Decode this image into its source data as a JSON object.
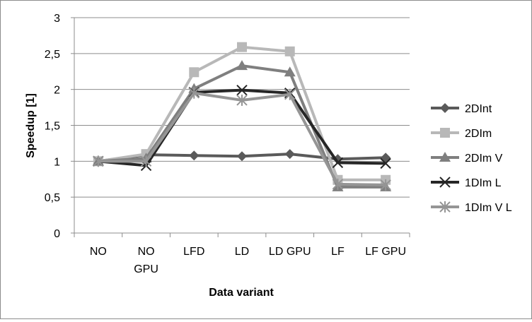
{
  "chart_data": {
    "type": "line",
    "title": "",
    "xlabel": "Data variant",
    "ylabel": "Speedup [1]",
    "ylim": [
      0,
      3
    ],
    "yticks": [
      0,
      0.5,
      1,
      1.5,
      2,
      2.5,
      3
    ],
    "ytick_labels": [
      "0",
      "0,5",
      "1",
      "1,5",
      "2",
      "2,5",
      "3"
    ],
    "categories": [
      "NO",
      "NO GPU",
      "LFD",
      "LD",
      "LD GPU",
      "LF",
      "LF GPU"
    ],
    "category_labels": [
      [
        "NO"
      ],
      [
        "NO",
        "GPU"
      ],
      [
        "LFD"
      ],
      [
        "LD"
      ],
      [
        "LD GPU"
      ],
      [
        "LF"
      ],
      [
        "LF GPU"
      ]
    ],
    "grid": "horizontal",
    "legend_position": "right",
    "series": [
      {
        "name": "2DInt",
        "color": "#5a5a5a",
        "marker": "diamond",
        "values": [
          1.0,
          1.09,
          1.08,
          1.07,
          1.1,
          1.03,
          1.05
        ]
      },
      {
        "name": "2DIm",
        "color": "#b8b8b8",
        "marker": "square",
        "values": [
          1.0,
          1.1,
          2.24,
          2.59,
          2.53,
          0.74,
          0.74
        ]
      },
      {
        "name": "2DIm V",
        "color": "#7f7f7f",
        "marker": "triangle",
        "values": [
          1.0,
          1.04,
          2.01,
          2.33,
          2.24,
          0.64,
          0.64
        ]
      },
      {
        "name": "1DIm L",
        "color": "#262626",
        "marker": "x",
        "values": [
          1.0,
          0.94,
          1.96,
          1.99,
          1.95,
          0.98,
          0.97
        ]
      },
      {
        "name": "1DIm V L",
        "color": "#959595",
        "marker": "star",
        "values": [
          1.0,
          1.0,
          1.95,
          1.85,
          1.93,
          0.68,
          0.67
        ]
      }
    ]
  }
}
